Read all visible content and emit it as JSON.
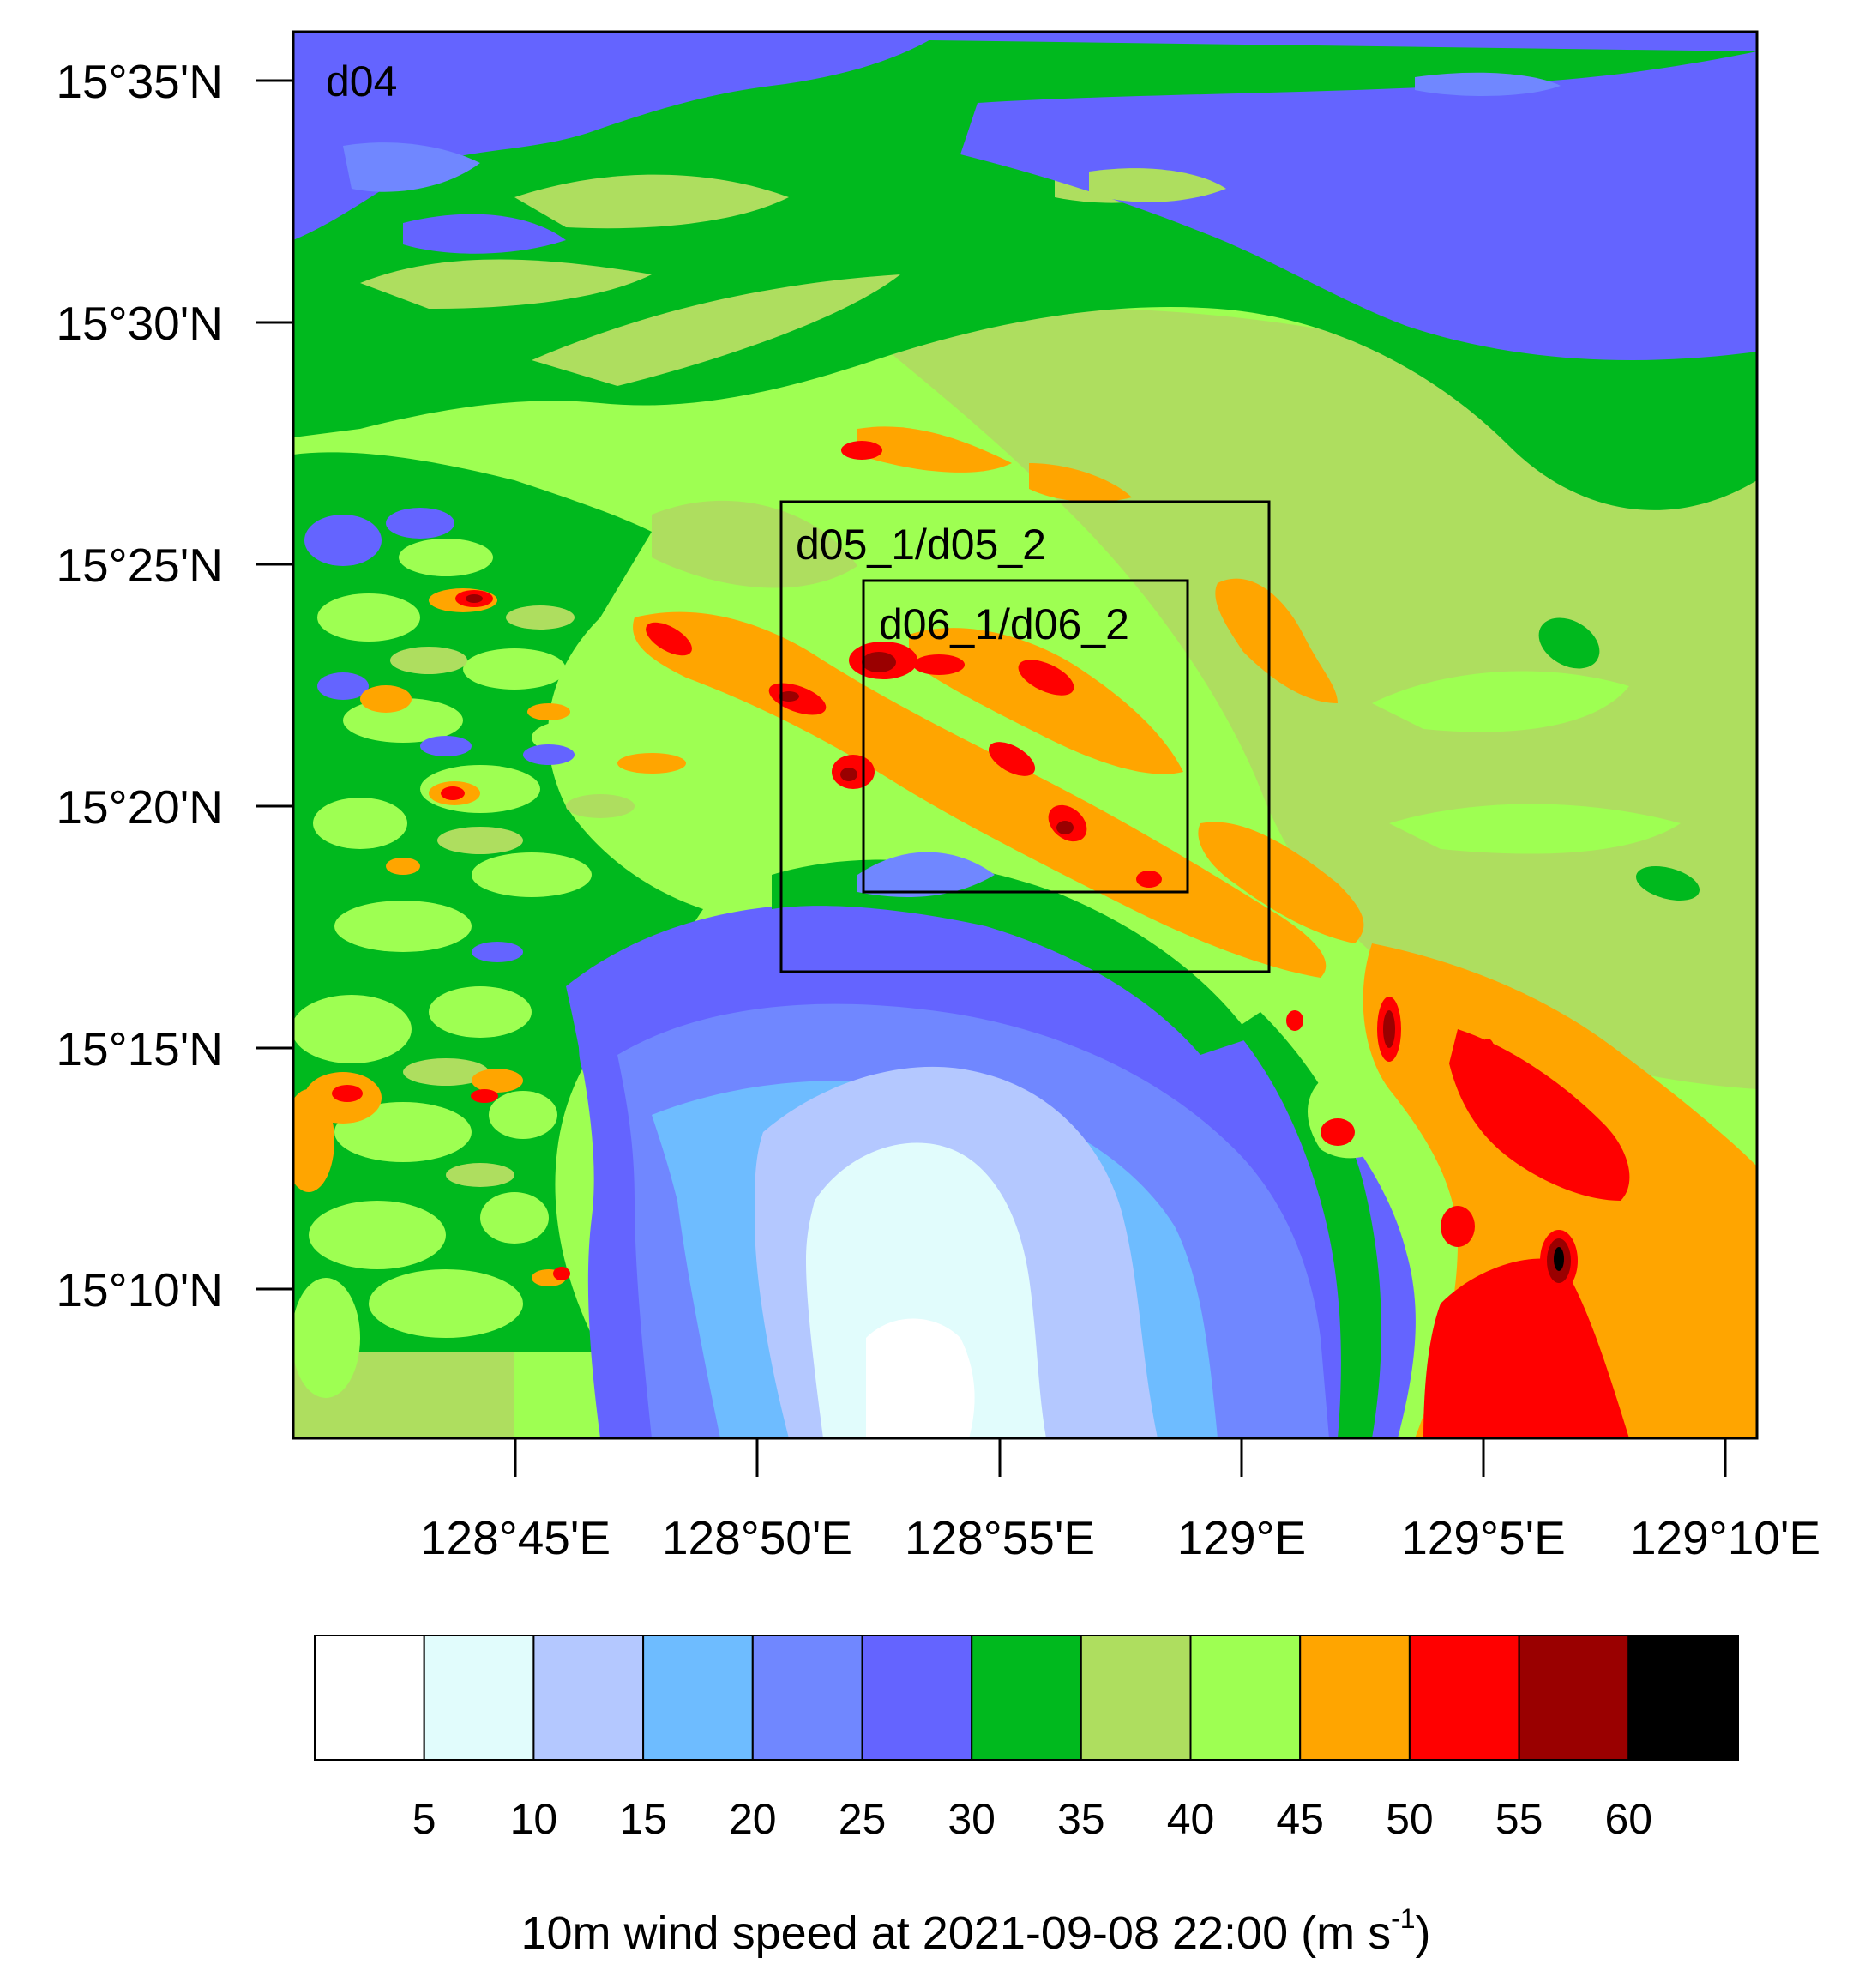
{
  "map": {
    "domain_label": "d04",
    "nested_domains": [
      {
        "name": "d05",
        "label": "d05_1/d05_2"
      },
      {
        "name": "d06",
        "label": "d06_1/d06_2"
      }
    ],
    "lat_ticks": [
      "15°35'N",
      "15°30'N",
      "15°25'N",
      "15°20'N",
      "15°15'N",
      "15°10'N"
    ],
    "lon_ticks": [
      "128°45'E",
      "128°50'E",
      "128°55'E",
      "129°E",
      "129°5'E",
      "129°10'E"
    ]
  },
  "colorbar": {
    "levels": [
      "5",
      "10",
      "15",
      "20",
      "25",
      "30",
      "35",
      "40",
      "45",
      "50",
      "55",
      "60"
    ],
    "colors": [
      "#ffffff",
      "#e1fcfc",
      "#b4c8ff",
      "#6ebcff",
      "#7087ff",
      "#6464ff",
      "#00b91e",
      "#aede5f",
      "#9eff52",
      "#ffa500",
      "#ff0000",
      "#9a0000",
      "#000000"
    ],
    "title_main": "10m wind speed at 2021-09-08 22:00 (m s",
    "title_sup": "-1",
    "title_end": ")"
  }
}
